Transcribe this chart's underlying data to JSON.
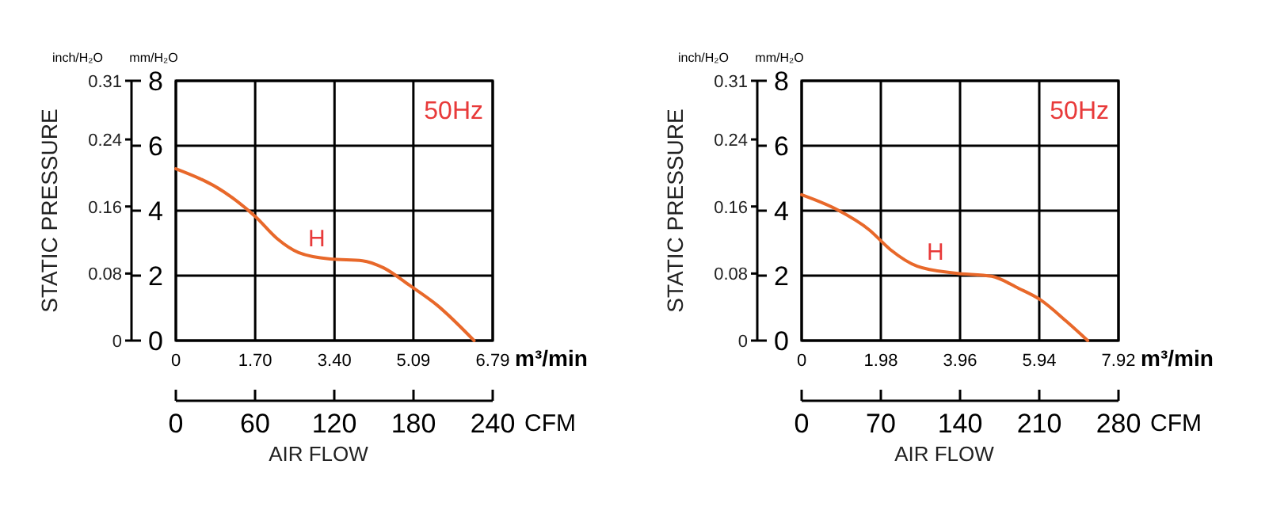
{
  "chart_data": [
    {
      "type": "line",
      "ylabel": "mm/H₂O",
      "xlabel": "AIR FLOW",
      "x2label": "CFM",
      "y2label": "inch/H₂O",
      "annotations": [
        "STATIC PRESSURE",
        "m³/min",
        "50Hz"
      ],
      "xlim": [
        0,
        6.79
      ],
      "xticks": [
        0,
        {
          "value": 1.7,
          "label": "1.70"
        },
        {
          "value": 3.4,
          "label": "3.40"
        },
        5.09,
        6.79
      ],
      "x2lim": [
        0,
        240
      ],
      "x2ticks": [
        0,
        60,
        120,
        180,
        240
      ],
      "ylim": [
        0,
        8
      ],
      "yticks": [
        0,
        2,
        4,
        6,
        8
      ],
      "y2lim": [
        0,
        0.31
      ],
      "y2ticks": [
        0,
        0.08,
        0.16,
        0.24,
        0.31
      ],
      "grid": true,
      "marker": "none",
      "line_style": "solid",
      "series": [
        {
          "name": "H",
          "color": "#e8682a",
          "x": [
            0,
            1.03,
            1.71,
            2.17,
            2.63,
            3.31,
            4.0,
            4.45,
            5.02,
            5.59,
            6.39
          ],
          "values": [
            5.29,
            4.58,
            3.81,
            3.14,
            2.71,
            2.51,
            2.46,
            2.24,
            1.69,
            1.1,
            0
          ]
        }
      ]
    },
    {
      "type": "line",
      "ylabel": "mm/H₂O",
      "xlabel": "AIR FLOW",
      "x2label": "CFM",
      "y2label": "inch/H₂O",
      "annotations": [
        "STATIC PRESSURE",
        "m³/min",
        "50Hz"
      ],
      "xlim": [
        0,
        7.92
      ],
      "xticks": [
        0,
        1.98,
        3.96,
        5.94,
        7.92
      ],
      "x2lim": [
        0,
        280
      ],
      "x2ticks": [
        0,
        70,
        140,
        210,
        280
      ],
      "ylim": [
        0,
        8
      ],
      "yticks": [
        0,
        2,
        4,
        6,
        8
      ],
      "y2lim": [
        0,
        0.31
      ],
      "y2ticks": [
        0,
        0.08,
        0.16,
        0.24,
        0.31
      ],
      "grid": true,
      "marker": "none",
      "line_style": "solid",
      "series": [
        {
          "name": "H",
          "color": "#e8682a",
          "x": [
            0,
            0.89,
            1.69,
            2.22,
            2.89,
            3.82,
            4.75,
            5.42,
            5.95,
            6.62,
            7.15
          ],
          "values": [
            4.49,
            4.03,
            3.41,
            2.8,
            2.29,
            2.08,
            1.98,
            1.61,
            1.27,
            0.59,
            0
          ]
        }
      ]
    }
  ]
}
